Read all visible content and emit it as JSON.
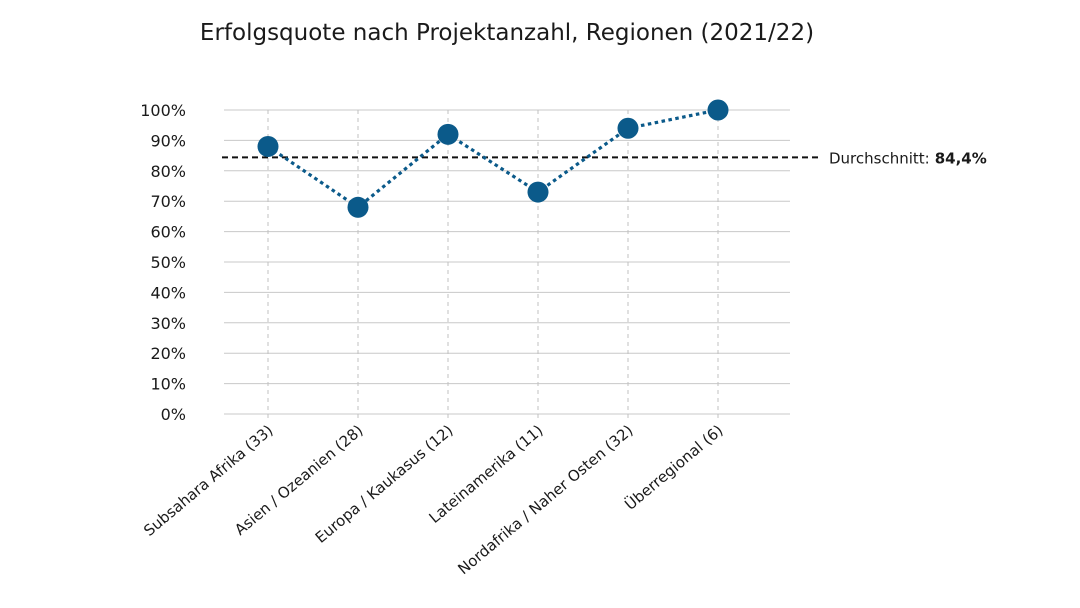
{
  "chart_data": {
    "type": "line",
    "title": "Erfolgsquote nach Projektanzahl, Regionen (2021/22)",
    "xlabel": "",
    "ylabel": "",
    "categories": [
      "Subsahara Afrika (33)",
      "Asien / Ozeanien (28)",
      "Europa / Kaukasus (12)",
      "Lateinamerika (11)",
      "Nordafrika / Naher Osten (32)",
      "Überregional (6)"
    ],
    "values": [
      88,
      68,
      92,
      73,
      94,
      100
    ],
    "ylim": [
      0,
      100
    ],
    "yticks": [
      "0%",
      "10%",
      "20%",
      "30%",
      "40%",
      "50%",
      "60%",
      "70%",
      "80%",
      "90%",
      "100%"
    ],
    "grid": true,
    "average": {
      "value": 84.4,
      "label": "Durchschnitt:",
      "value_label": "84,4%"
    },
    "colors": {
      "series": "#0b5a8a",
      "average": "#111111",
      "grid": "#c8c8c8"
    }
  }
}
